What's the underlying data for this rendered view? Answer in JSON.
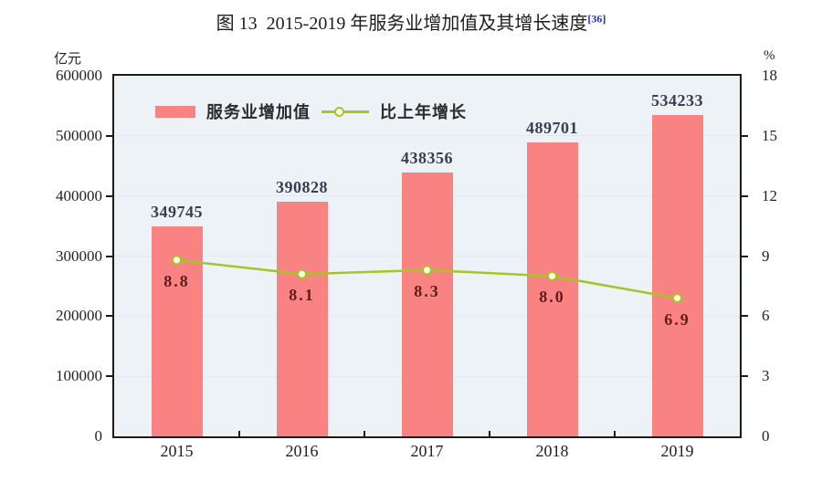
{
  "title": {
    "text": "图 13  2015-2019 年服务业增加值及其增长速度",
    "superscript": "[36]"
  },
  "colors": {
    "bar": "#f98383",
    "line": "#a6c525",
    "marker_fill": "#fcfeee",
    "plot_bg": "#edf2f7",
    "grid": "#e0e9f1",
    "border": "#1b1b1b",
    "value_label": "#3c3c50",
    "growth_label": "#601c1c",
    "axis_text": "#222222",
    "reference": "#2233cc"
  },
  "chart_data": {
    "type": "bar+line",
    "title": "图 13 2015-2019 年服务业增加值及其增长速度 [36]",
    "categories": [
      "2015",
      "2016",
      "2017",
      "2018",
      "2019"
    ],
    "series": [
      {
        "name": "服务业增加值",
        "type": "bar",
        "axis": "left",
        "color": "#f98383",
        "values": [
          349745,
          390828,
          438356,
          489701,
          534233
        ],
        "labels": [
          "349745",
          "390828",
          "438356",
          "489701",
          "534233"
        ]
      },
      {
        "name": "比上年增长",
        "type": "line",
        "axis": "right",
        "color": "#a6c525",
        "marker": "circle-open",
        "values": [
          8.8,
          8.1,
          8.3,
          8.0,
          6.9
        ],
        "labels": [
          "8.8",
          "8.1",
          "8.3",
          "8.0",
          "6.9"
        ]
      }
    ],
    "left_axis": {
      "label": "亿元",
      "min": 0,
      "max": 600000,
      "step": 100000,
      "tick_labels": [
        "0",
        "100000",
        "200000",
        "300000",
        "400000",
        "500000",
        "600000"
      ]
    },
    "right_axis": {
      "label": "%",
      "min": 0,
      "max": 18,
      "step": 3,
      "tick_labels": [
        "0",
        "3",
        "6",
        "9",
        "12",
        "15",
        "18"
      ]
    },
    "grid": true,
    "legend_position": "top-left-inside"
  }
}
